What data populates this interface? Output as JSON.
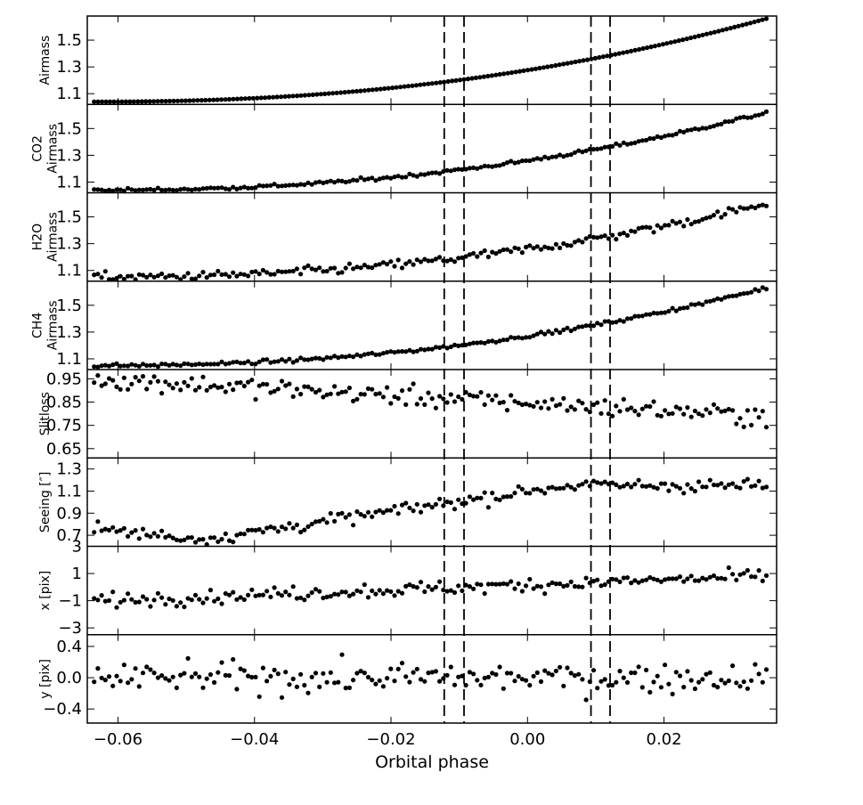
{
  "chart_data": {
    "type": "scatter",
    "xlabel": "Orbital phase",
    "xlim": [
      -0.0645,
      0.0365
    ],
    "x_ticks": [
      -0.06,
      -0.04,
      -0.02,
      0.0,
      0.02
    ],
    "x_tick_labels": [
      "−0.06",
      "−0.04",
      "−0.02",
      "0.00",
      "0.02"
    ],
    "vlines": [
      -0.0122,
      -0.0093,
      0.0093,
      0.0121
    ],
    "panels": [
      {
        "ylabel": [
          "Airmass"
        ],
        "ylim": [
          1.02,
          1.68
        ],
        "y_ticks": [
          1.1,
          1.3,
          1.5
        ],
        "y_tick_labels": [
          "1.1",
          "1.3",
          "1.5"
        ],
        "trend": {
          "base": 1.04,
          "amp": 0.62,
          "shape": "airmass"
        },
        "noise": 0.0,
        "points": 170
      },
      {
        "ylabel": [
          "CO2",
          "Airmass"
        ],
        "ylim": [
          1.02,
          1.68
        ],
        "y_ticks": [
          1.1,
          1.3,
          1.5
        ],
        "y_tick_labels": [
          "1.1",
          "1.3",
          "1.5"
        ],
        "trend": {
          "base": 1.04,
          "amp": 0.58,
          "shape": "airmass"
        },
        "noise": 0.015,
        "points": 180
      },
      {
        "ylabel": [
          "H2O",
          "Airmass"
        ],
        "ylim": [
          1.02,
          1.68
        ],
        "y_ticks": [
          1.1,
          1.3,
          1.5
        ],
        "y_tick_labels": [
          "1.1",
          "1.3",
          "1.5"
        ],
        "trend": {
          "base": 1.05,
          "amp": 0.55,
          "shape": "airmass"
        },
        "noise": 0.04,
        "points": 180
      },
      {
        "ylabel": [
          "CH4",
          "Airmass"
        ],
        "ylim": [
          1.02,
          1.68
        ],
        "y_ticks": [
          1.1,
          1.3,
          1.5
        ],
        "y_tick_labels": [
          "1.1",
          "1.3",
          "1.5"
        ],
        "trend": {
          "base": 1.05,
          "amp": 0.58,
          "shape": "airmass"
        },
        "noise": 0.015,
        "points": 180
      },
      {
        "ylabel": [
          "Slitloss"
        ],
        "ylim": [
          0.61,
          0.99
        ],
        "y_ticks": [
          0.65,
          0.75,
          0.85,
          0.95
        ],
        "y_tick_labels": [
          "0.65",
          "0.75",
          "0.85",
          "0.95"
        ],
        "trend": {
          "base": 0.95,
          "amp": -0.16,
          "shape": "linear"
        },
        "noise": 0.05,
        "points": 180
      },
      {
        "ylabel": [
          "Seeing [″]"
        ],
        "ylim": [
          0.6,
          1.4
        ],
        "y_ticks": [
          0.7,
          0.9,
          1.1,
          1.3
        ],
        "y_tick_labels": [
          "0.7",
          "0.9",
          "1.1",
          "1.3"
        ],
        "trend": {
          "base": 0.65,
          "amp": 0.5,
          "shape": "seeing"
        },
        "noise": 0.07,
        "points": 180
      },
      {
        "ylabel": [
          "x [pix]"
        ],
        "ylim": [
          -3.5,
          3.0
        ],
        "y_ticks": [
          -3,
          -1,
          1,
          3
        ],
        "y_tick_labels": [
          "−3",
          "−1",
          "1",
          "3"
        ],
        "trend": {
          "base": -1.0,
          "amp": 1.8,
          "shape": "linear"
        },
        "noise": 0.6,
        "points": 180
      },
      {
        "ylabel": [
          "y [pix]"
        ],
        "ylim": [
          -0.58,
          0.55
        ],
        "y_ticks": [
          -0.4,
          0.0,
          0.4
        ],
        "y_tick_labels": [
          "−0.4",
          "0.0",
          "0.4"
        ],
        "trend": {
          "base": 0.0,
          "amp": 0.0,
          "shape": "linear"
        },
        "noise": 0.22,
        "points": 180
      }
    ]
  }
}
